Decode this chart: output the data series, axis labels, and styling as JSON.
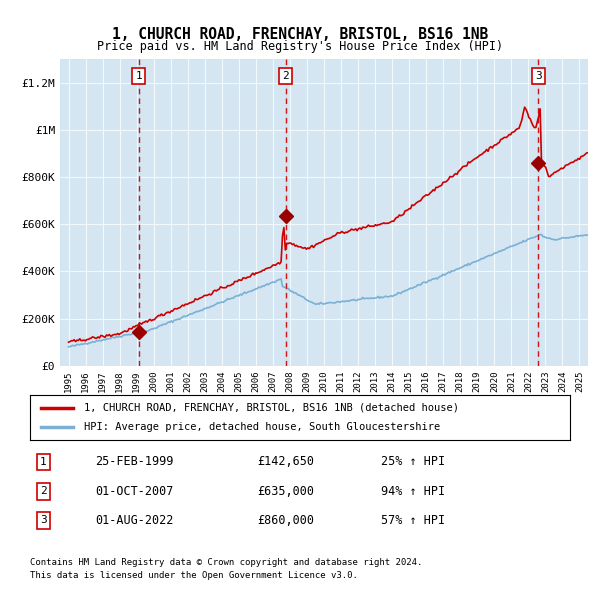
{
  "title": "1, CHURCH ROAD, FRENCHAY, BRISTOL, BS16 1NB",
  "subtitle": "Price paid vs. HM Land Registry's House Price Index (HPI)",
  "background_color": "#dce9f5",
  "plot_bg_color": "#dce9f5",
  "red_line_color": "#cc0000",
  "blue_line_color": "#7ab0d4",
  "sale_marker_color": "#990000",
  "dashed_line_color": "#cc0000",
  "sale_events": [
    {
      "num": 1,
      "date_label": "25-FEB-1999",
      "x": 1999.12,
      "price": 142650,
      "pct": "25%",
      "dir": "↑"
    },
    {
      "num": 2,
      "date_label": "01-OCT-2007",
      "x": 2007.75,
      "price": 635000,
      "pct": "94%",
      "dir": "↑"
    },
    {
      "num": 3,
      "date_label": "01-AUG-2022",
      "x": 2022.58,
      "price": 860000,
      "pct": "57%",
      "dir": "↑"
    }
  ],
  "legend_entries": [
    "1, CHURCH ROAD, FRENCHAY, BRISTOL, BS16 1NB (detached house)",
    "HPI: Average price, detached house, South Gloucestershire"
  ],
  "table_rows": [
    [
      "1",
      "25-FEB-1999",
      "£142,650",
      "25% ↑ HPI"
    ],
    [
      "2",
      "01-OCT-2007",
      "£635,000",
      "94% ↑ HPI"
    ],
    [
      "3",
      "01-AUG-2022",
      "£860,000",
      "57% ↑ HPI"
    ]
  ],
  "footnote1": "Contains HM Land Registry data © Crown copyright and database right 2024.",
  "footnote2": "This data is licensed under the Open Government Licence v3.0.",
  "ylim": [
    0,
    1300000
  ],
  "xlim": [
    1994.5,
    2025.5
  ],
  "yticks": [
    0,
    200000,
    400000,
    600000,
    800000,
    1000000,
    1200000
  ],
  "ytick_labels": [
    "£0",
    "£200K",
    "£400K",
    "£600K",
    "£800K",
    "£1M",
    "£1.2M"
  ],
  "xticks": [
    1995,
    1996,
    1997,
    1998,
    1999,
    2000,
    2001,
    2002,
    2003,
    2004,
    2005,
    2006,
    2007,
    2008,
    2009,
    2010,
    2011,
    2012,
    2013,
    2014,
    2015,
    2016,
    2017,
    2018,
    2019,
    2020,
    2021,
    2022,
    2023,
    2024,
    2025
  ]
}
